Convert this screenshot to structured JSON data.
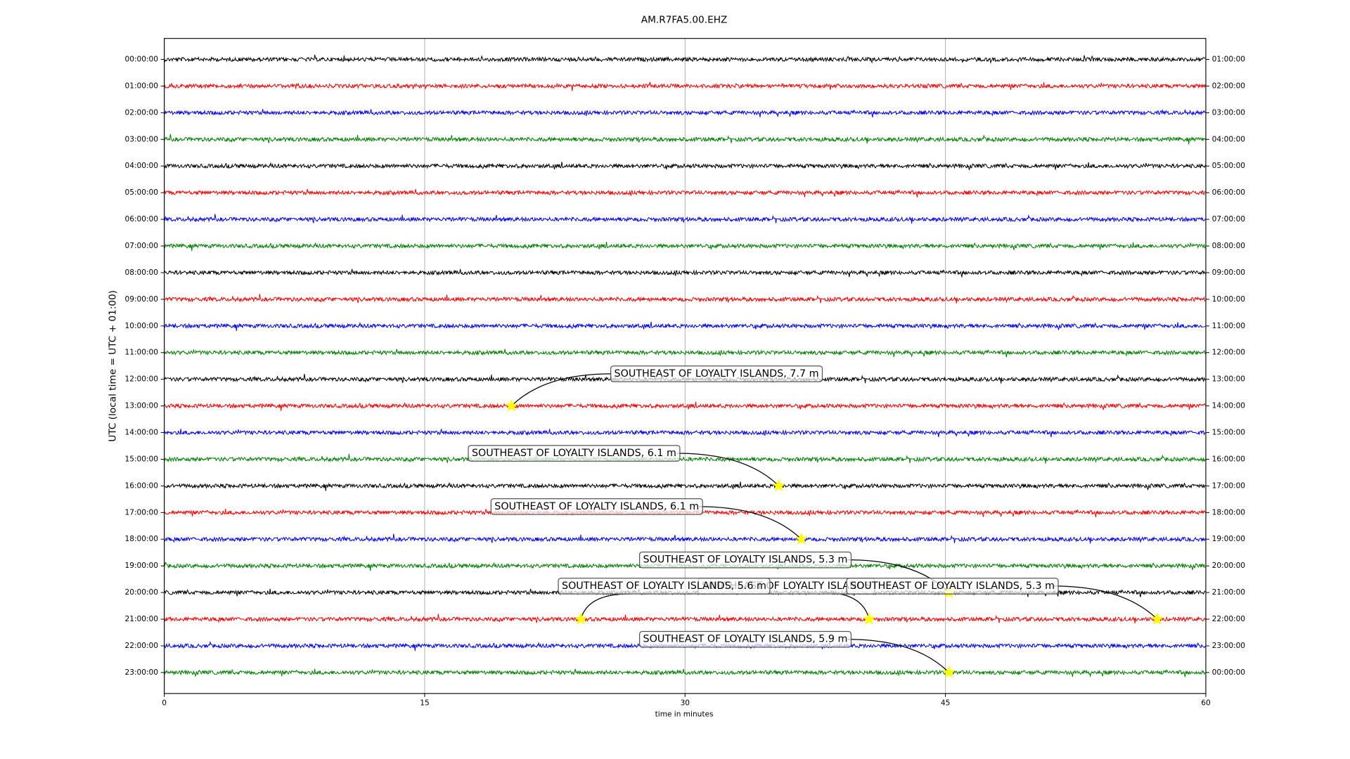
{
  "chart_data": {
    "type": "dayplot",
    "title": "AM.R7FA5.00.EHZ",
    "xlabel": "time in minutes",
    "ylabel": "UTC (local time = UTC + 01:00)",
    "xlim": [
      0,
      60
    ],
    "xticks": [
      0,
      15,
      30,
      45,
      60
    ],
    "grid": true,
    "colors": [
      "#000000",
      "#ff0000",
      "#0000ff",
      "#008000"
    ],
    "rows": [
      "00:00:00",
      "01:00:00",
      "02:00:00",
      "03:00:00",
      "04:00:00",
      "05:00:00",
      "06:00:00",
      "07:00:00",
      "08:00:00",
      "09:00:00",
      "10:00:00",
      "11:00:00",
      "12:00:00",
      "13:00:00",
      "14:00:00",
      "15:00:00",
      "16:00:00",
      "17:00:00",
      "18:00:00",
      "19:00:00",
      "20:00:00",
      "21:00:00",
      "22:00:00",
      "23:00:00"
    ],
    "right_labels": [
      "01:00:00",
      "02:00:00",
      "03:00:00",
      "04:00:00",
      "05:00:00",
      "06:00:00",
      "07:00:00",
      "08:00:00",
      "09:00:00",
      "10:00:00",
      "11:00:00",
      "12:00:00",
      "13:00:00",
      "14:00:00",
      "15:00:00",
      "16:00:00",
      "17:00:00",
      "18:00:00",
      "19:00:00",
      "20:00:00",
      "21:00:00",
      "22:00:00",
      "23:00:00",
      "00:00:00"
    ],
    "events": [
      {
        "label": "SOUTHEAST OF LOYALTY ISLANDS, 7.7 m",
        "row": 13,
        "minute": 20.0
      },
      {
        "label": "SOUTHEAST OF LOYALTY ISLANDS, 6.1 m",
        "row": 16,
        "minute": 35.4
      },
      {
        "label": "SOUTHEAST OF LOYALTY ISLANDS, 6.1 m",
        "row": 18,
        "minute": 36.7
      },
      {
        "label": "SOUTHEAST OF LOYALTY ISLANDS, 5.3 m",
        "row": 20,
        "minute": 45.2
      },
      {
        "label": "SOUTHEAST OF LOYALTY ISLANDS, 5.6 m",
        "row": 21,
        "minute": 24.0
      },
      {
        "label": "SOUTHEAST OF LOYALTY ISLANDS",
        "row": 21,
        "minute": 40.6
      },
      {
        "label": "SOUTHEAST OF LOYALTY ISLANDS, 5.3 m",
        "row": 21,
        "minute": 57.2
      },
      {
        "label": "SOUTHEAST OF LOYALTY ISLANDS, 5.9 m",
        "row": 23,
        "minute": 45.2
      }
    ]
  }
}
